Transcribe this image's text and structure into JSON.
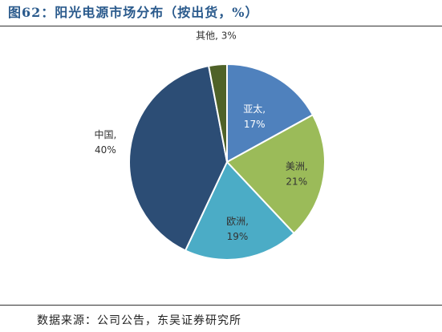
{
  "title": "图62：阳光电源市场分布（按出货，%）",
  "source": "数据来源：公司公告，东吴证券研究所",
  "chart_data": {
    "type": "pie",
    "title": "",
    "unit": "%",
    "slices": [
      {
        "name": "亚太",
        "value": 17,
        "label": "17%",
        "color": "#4f81bd",
        "label_color": "#ffffff"
      },
      {
        "name": "美洲",
        "value": 21,
        "label": "21%",
        "color": "#9bbb59",
        "label_color": "#333333"
      },
      {
        "name": "欧洲",
        "value": 19,
        "label": "19%",
        "color": "#4bacc6",
        "label_color": "#333333"
      },
      {
        "name": "中国",
        "value": 40,
        "label": "40%",
        "color": "#2c4d75",
        "label_color": "#333333"
      },
      {
        "name": "其他",
        "value": 3,
        "label": "3%",
        "color": "#4f6228",
        "label_color": "#333333"
      }
    ],
    "start_angle_deg": 0,
    "direction": "clockwise"
  }
}
